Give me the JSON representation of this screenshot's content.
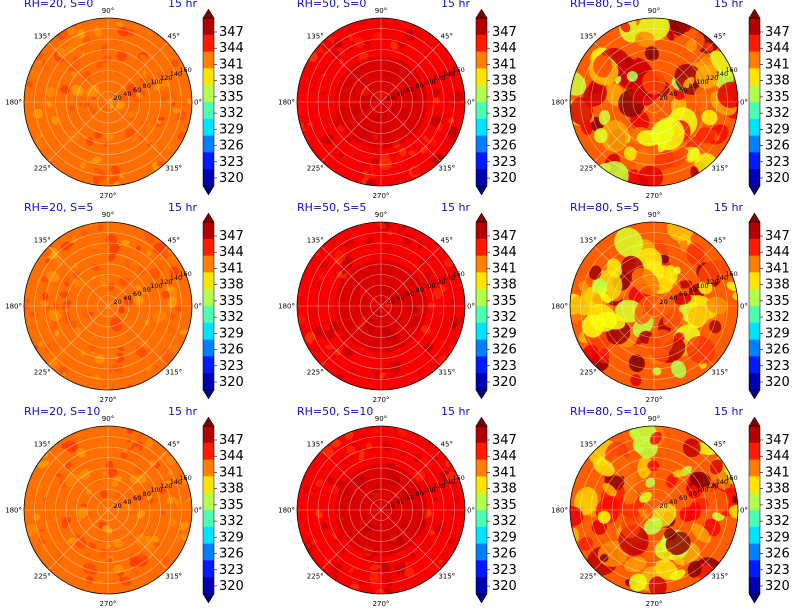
{
  "chart_data": {
    "type": "polar-contour-grid",
    "time_label": "15 hr",
    "angle_ticks": [
      "0°",
      "45°",
      "90°",
      "135°",
      "180°",
      "225°",
      "270°",
      "315°"
    ],
    "radial_ticks": [
      20,
      40,
      60,
      80,
      100,
      120,
      140,
      160
    ],
    "radial_range": [
      0,
      160
    ],
    "colorbar": {
      "colormap": "jet",
      "range": [
        320,
        350
      ],
      "ticks": [
        "347",
        "344",
        "341",
        "338",
        "335",
        "332",
        "329",
        "326",
        "323",
        "320"
      ]
    },
    "panels": [
      {
        "label": "RH=20, S=0",
        "mean_value": 343.0,
        "variability": 1.0
      },
      {
        "label": "RH=50, S=0",
        "mean_value": 346.5,
        "variability": 1.2
      },
      {
        "label": "RH=80, S=0",
        "mean_value": 343.5,
        "variability": 4.5
      },
      {
        "label": "RH=20, S=5",
        "mean_value": 343.0,
        "variability": 1.0
      },
      {
        "label": "RH=50, S=5",
        "mean_value": 346.5,
        "variability": 1.2
      },
      {
        "label": "RH=80, S=5",
        "mean_value": 343.5,
        "variability": 4.5
      },
      {
        "label": "RH=20, S=10",
        "mean_value": 343.0,
        "variability": 1.0
      },
      {
        "label": "RH=50, S=10",
        "mean_value": 346.5,
        "variability": 1.2
      },
      {
        "label": "RH=80, S=10",
        "mean_value": 343.5,
        "variability": 4.5
      }
    ],
    "grid": true
  }
}
